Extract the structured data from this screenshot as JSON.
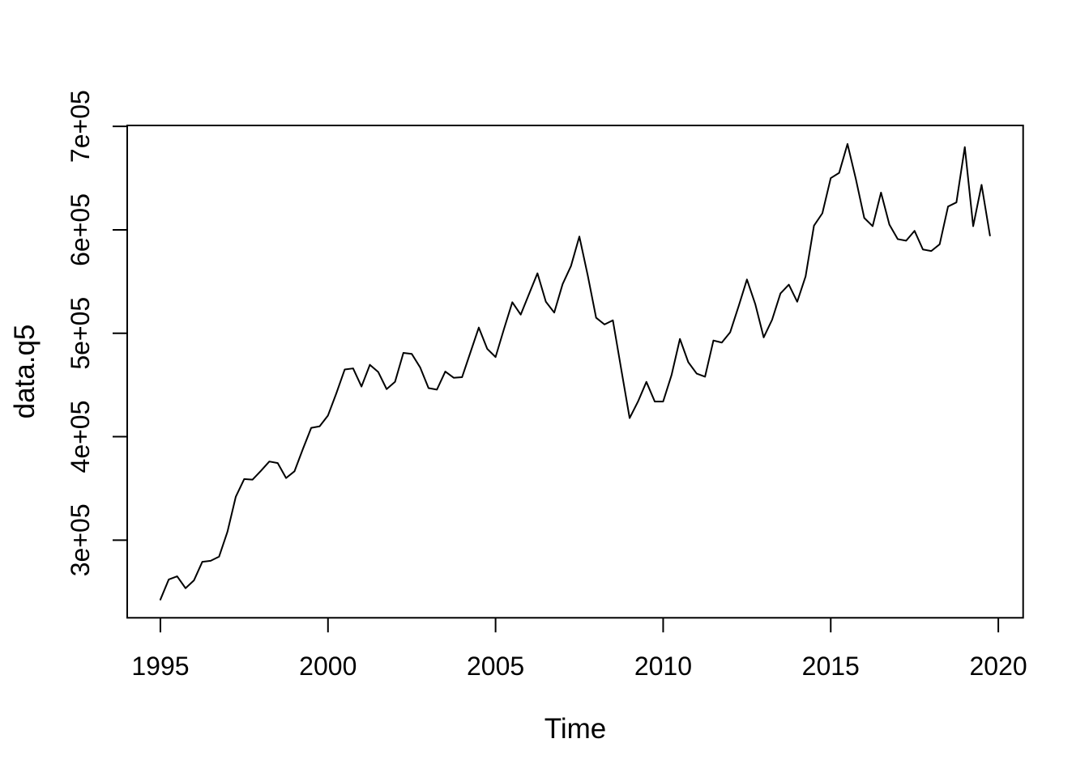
{
  "chart_data": {
    "type": "line",
    "title": "",
    "xlabel": "Time",
    "ylabel": "data.q5",
    "x_start": 1995.0,
    "x_step": 0.25,
    "xlim": [
      1994.01,
      2020.74
    ],
    "ylim": [
      224900,
      700900
    ],
    "x_ticks": [
      1995,
      2000,
      2005,
      2010,
      2015,
      2020
    ],
    "x_tick_labels": [
      "1995",
      "2000",
      "2005",
      "2010",
      "2015",
      "2020"
    ],
    "y_ticks": [
      300000,
      400000,
      500000,
      600000,
      700000
    ],
    "y_tick_labels": [
      "3e+05",
      "4e+05",
      "5e+05",
      "6e+05",
      "7e+05"
    ],
    "grid": "off",
    "legend": "none",
    "line_color": "#000000",
    "background_color": "#ffffff",
    "series": [
      {
        "name": "data.q5",
        "values": [
          242500,
          262000,
          265000,
          253500,
          261000,
          279000,
          280000,
          284000,
          308000,
          342000,
          359000,
          358500,
          367000,
          376000,
          374500,
          360000,
          366500,
          388000,
          408500,
          410000,
          420500,
          442000,
          465000,
          466000,
          448500,
          469500,
          462500,
          446000,
          453000,
          481000,
          480000,
          467000,
          447000,
          445500,
          463000,
          457000,
          457500,
          481500,
          505500,
          485000,
          477000,
          504000,
          530000,
          518000,
          538000,
          558000,
          530500,
          520000,
          547500,
          565000,
          593500,
          556000,
          515000,
          508500,
          512500,
          465000,
          418000,
          434000,
          453000,
          434000,
          434000,
          459500,
          494500,
          472000,
          461000,
          458000,
          493000,
          491000,
          501000,
          526000,
          552000,
          528000,
          496000,
          513000,
          538500,
          547000,
          530500,
          555000,
          604000,
          616000,
          650000,
          655000,
          683000,
          649000,
          611500,
          603500,
          636000,
          605000,
          591000,
          589500,
          599000,
          581000,
          579500,
          586000,
          622500,
          626500,
          680000,
          603500,
          643500,
          594500
        ]
      }
    ]
  }
}
